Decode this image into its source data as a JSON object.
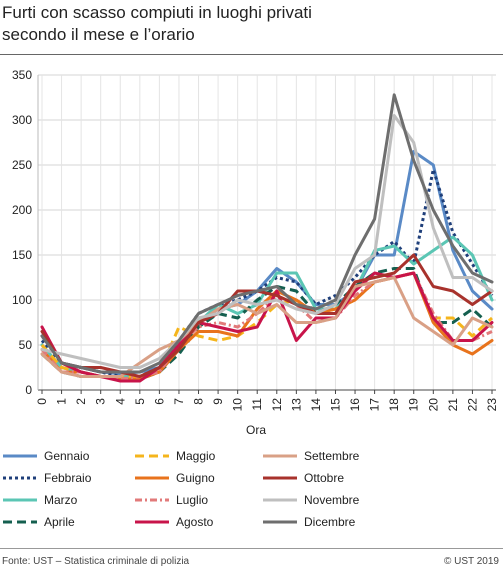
{
  "title": {
    "line1": "Furti con scasso compiuti in luoghi privati",
    "line2": "secondo il mese e l’orario"
  },
  "footer": {
    "source": "Fonte: UST – Statistica criminale di polizia",
    "copyright": "© UST 2019"
  },
  "chart_data": {
    "type": "line",
    "xlabel": "Ora",
    "ylabel": "",
    "ylim": [
      0,
      350
    ],
    "yticks": [
      0,
      50,
      100,
      150,
      200,
      250,
      300,
      350
    ],
    "grid": true,
    "legend_position": "bottom",
    "categories": [
      "0",
      "1",
      "2",
      "3",
      "4",
      "5",
      "6",
      "7",
      "8",
      "9",
      "10",
      "11",
      "12",
      "13",
      "14",
      "15",
      "16",
      "17",
      "18",
      "19",
      "20",
      "21",
      "22",
      "23"
    ],
    "series": [
      {
        "name": "Gennaio",
        "color": "#5a8ac6",
        "dash": "solid",
        "values": [
          60,
          30,
          25,
          20,
          18,
          20,
          25,
          50,
          75,
          90,
          95,
          110,
          135,
          120,
          95,
          95,
          110,
          150,
          150,
          265,
          250,
          155,
          110,
          90
        ]
      },
      {
        "name": "Febbraio",
        "color": "#1f3f7a",
        "dash": "dotted",
        "values": [
          55,
          30,
          25,
          20,
          15,
          15,
          25,
          55,
          85,
          95,
          100,
          110,
          125,
          120,
          95,
          105,
          125,
          150,
          165,
          140,
          245,
          175,
          140,
          105
        ]
      },
      {
        "name": "Marzo",
        "color": "#5bc6b4",
        "dash": "solid",
        "values": [
          50,
          25,
          20,
          15,
          15,
          15,
          20,
          45,
          75,
          95,
          85,
          95,
          130,
          130,
          90,
          90,
          110,
          155,
          160,
          140,
          155,
          170,
          150,
          100
        ]
      },
      {
        "name": "Aprile",
        "color": "#145f4f",
        "dash": "dashed",
        "values": [
          40,
          20,
          15,
          15,
          12,
          12,
          20,
          40,
          70,
          85,
          80,
          100,
          115,
          110,
          85,
          95,
          115,
          130,
          135,
          135,
          75,
          75,
          90,
          70
        ]
      },
      {
        "name": "Maggio",
        "color": "#f5b51c",
        "dash": "dashed",
        "values": [
          50,
          25,
          20,
          15,
          15,
          15,
          20,
          70,
          60,
          55,
          60,
          75,
          95,
          100,
          85,
          90,
          100,
          120,
          125,
          130,
          80,
          80,
          60,
          80
        ]
      },
      {
        "name": "Guigno",
        "color": "#e8731c",
        "dash": "solid",
        "values": [
          45,
          20,
          20,
          15,
          12,
          12,
          20,
          45,
          65,
          65,
          60,
          90,
          110,
          100,
          85,
          90,
          100,
          120,
          125,
          130,
          75,
          50,
          40,
          55
        ]
      },
      {
        "name": "Luglio",
        "color": "#e27a7a",
        "dash": "dashdot",
        "values": [
          45,
          20,
          20,
          15,
          12,
          15,
          20,
          50,
          70,
          75,
          70,
          85,
          105,
          95,
          75,
          80,
          105,
          120,
          125,
          130,
          85,
          55,
          55,
          65
        ]
      },
      {
        "name": "Agosto",
        "color": "#c8144a",
        "dash": "solid",
        "values": [
          70,
          30,
          20,
          15,
          10,
          10,
          25,
          50,
          75,
          70,
          65,
          70,
          110,
          55,
          80,
          80,
          110,
          130,
          125,
          130,
          80,
          55,
          55,
          75
        ]
      },
      {
        "name": "Settembre",
        "color": "#d9a086",
        "dash": "solid",
        "values": [
          40,
          20,
          15,
          15,
          15,
          30,
          45,
          55,
          75,
          90,
          95,
          85,
          95,
          75,
          75,
          80,
          115,
          120,
          125,
          80,
          65,
          50,
          80,
          70
        ]
      },
      {
        "name": "Ottobre",
        "color": "#a8322c",
        "dash": "solid",
        "values": [
          65,
          30,
          25,
          25,
          20,
          15,
          25,
          45,
          75,
          85,
          110,
          110,
          105,
          95,
          85,
          85,
          120,
          125,
          130,
          150,
          115,
          110,
          95,
          110
        ]
      },
      {
        "name": "Novembre",
        "color": "#bfbfbf",
        "dash": "solid",
        "values": [
          45,
          40,
          35,
          30,
          25,
          25,
          35,
          55,
          80,
          85,
          100,
          95,
          100,
          90,
          85,
          95,
          135,
          150,
          305,
          275,
          180,
          125,
          125,
          110
        ]
      },
      {
        "name": "Dicembre",
        "color": "#6e6e6e",
        "dash": "solid",
        "values": [
          60,
          30,
          25,
          20,
          20,
          20,
          30,
          55,
          85,
          95,
          105,
          110,
          115,
          95,
          90,
          100,
          150,
          190,
          328,
          255,
          200,
          160,
          130,
          120
        ]
      }
    ]
  }
}
